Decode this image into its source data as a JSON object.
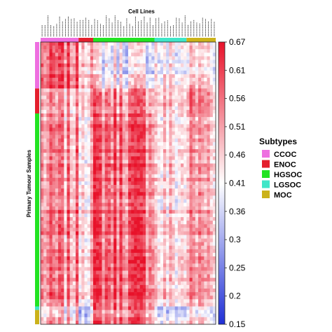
{
  "chart_data": {
    "type": "heatmap",
    "title": "Cell Lines",
    "ylabel": "Primary Tumour Samples",
    "colorbar": {
      "min": 0.15,
      "max": 0.67,
      "ticks": [
        "0.67",
        "0.61",
        "0.56",
        "0.51",
        "0.46",
        "0.41",
        "0.36",
        "0.3",
        "0.25",
        "0.2",
        "0.15"
      ],
      "colors": [
        "#1f2fd6",
        "#ffffff",
        "#e8122a"
      ]
    },
    "legend": {
      "title": "Subtypes",
      "placement": "right",
      "items": [
        {
          "label": "CCOC",
          "color": "#ee6fe0"
        },
        {
          "label": "ENOC",
          "color": "#e41f2d"
        },
        {
          "label": "HGSOC",
          "color": "#22e322"
        },
        {
          "label": "LGSOC",
          "color": "#3fe6c8"
        },
        {
          "label": "MOC",
          "color": "#cbb21a"
        }
      ]
    },
    "column_groups": [
      {
        "subtype": "CCOC",
        "count": 13
      },
      {
        "subtype": "ENOC",
        "count": 5
      },
      {
        "subtype": "HGSOC",
        "count": 21
      },
      {
        "subtype": "LGSOC",
        "count": 11
      },
      {
        "subtype": "MOC",
        "count": 10
      }
    ],
    "row_groups": [
      {
        "subtype": "CCOC",
        "count": 13
      },
      {
        "subtype": "ENOC",
        "count": 7
      },
      {
        "subtype": "HGSOC",
        "count": 54
      },
      {
        "subtype": "LGSOC",
        "count": 1
      },
      {
        "subtype": "MOC",
        "count": 4
      }
    ],
    "block_means": [
      [
        0.57,
        0.52,
        0.41,
        0.42,
        0.45
      ],
      [
        0.49,
        0.52,
        0.55,
        0.47,
        0.54
      ],
      [
        0.52,
        0.49,
        0.58,
        0.45,
        0.51
      ],
      [
        0.44,
        0.38,
        0.59,
        0.33,
        0.42
      ],
      [
        0.47,
        0.4,
        0.56,
        0.38,
        0.44
      ]
    ]
  }
}
